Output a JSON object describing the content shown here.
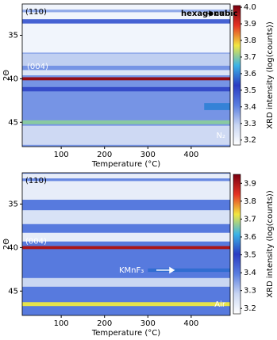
{
  "chart_data": [
    {
      "type": "heatmap",
      "xlabel": "Temperature (°C)",
      "ylabel": "2Θ",
      "colorbar_label": "XRD intensity (log(counts))",
      "xlim": [
        10,
        490
      ],
      "xticks": [
        100,
        200,
        300,
        400
      ],
      "ylim": [
        31.4,
        47.8
      ],
      "yticks": [
        35,
        40,
        45
      ],
      "clim": [
        3.17,
        4.01
      ],
      "cticks": [
        {
          "value": 3.2,
          "label": "3.2"
        },
        {
          "value": 3.3,
          "label": "3.3"
        },
        {
          "value": 3.4,
          "label": "3.4"
        },
        {
          "value": 3.5,
          "label": "3.5"
        },
        {
          "value": 3.6,
          "label": "3.6"
        },
        {
          "value": 3.7,
          "label": "3.7"
        },
        {
          "value": 3.8,
          "label": "3.8"
        },
        {
          "value": 3.9,
          "label": "3.9"
        },
        {
          "value": 4.0,
          "label": "4.0"
        }
      ],
      "colormap": [
        "#ffffff",
        "#c9d6f2",
        "#5a7ee0",
        "#2a3cc2",
        "#3cb4e6",
        "#f2e640",
        "#e43222",
        "#7a0010"
      ],
      "background": 3.38,
      "bands": [
        {
          "two_theta": 34.2,
          "intensity": 3.2,
          "width": 5.6
        },
        {
          "two_theta": 32.2,
          "intensity": 3.35,
          "width": 0.3
        },
        {
          "two_theta": 33.4,
          "intensity": 3.46,
          "width": 0.5
        },
        {
          "two_theta": 37.8,
          "intensity": 3.3,
          "width": 1.4
        },
        {
          "two_theta": 39.3,
          "intensity": 3.25,
          "width": 0.6
        },
        {
          "two_theta": 40.0,
          "intensity": 3.98,
          "width": 0.35
        },
        {
          "two_theta": 41.2,
          "intensity": 3.5,
          "width": 0.5
        },
        {
          "two_theta": 43.2,
          "intensity": 3.6,
          "width": 0.8,
          "temperature": [
            430,
            490
          ]
        },
        {
          "two_theta": 45.0,
          "intensity": 3.7,
          "width": 0.45
        },
        {
          "two_theta": 46.5,
          "intensity": 3.28,
          "width": 2.2
        }
      ],
      "annotations": [
        "(110)",
        "(004)",
        "hexagonal",
        "cubic",
        "N₂"
      ]
    },
    {
      "type": "heatmap",
      "xlabel": "Temperature (°C)",
      "ylabel": "2Θ",
      "colorbar_label": "XRD intensity (log(counts))",
      "xlim": [
        10,
        490
      ],
      "xticks": [
        100,
        200,
        300,
        400
      ],
      "ylim": [
        31.4,
        47.8
      ],
      "yticks": [
        35,
        40,
        45
      ],
      "clim": [
        3.17,
        3.95
      ],
      "cticks": [
        {
          "value": 3.2,
          "label": "3.2"
        },
        {
          "value": 3.3,
          "label": "3.3"
        },
        {
          "value": 3.4,
          "label": "3.4"
        },
        {
          "value": 3.5,
          "label": "3.5"
        },
        {
          "value": 3.6,
          "label": "3.6"
        },
        {
          "value": 3.7,
          "label": "3.7"
        },
        {
          "value": 3.8,
          "label": "3.8"
        },
        {
          "value": 3.9,
          "label": "3.9"
        }
      ],
      "colormap": [
        "#ffffff",
        "#c9d6f2",
        "#5a7ee0",
        "#2a3cc2",
        "#3cb4e6",
        "#f2e640",
        "#e43222",
        "#7a0010"
      ],
      "background": 3.4,
      "bands": [
        {
          "two_theta": 33.0,
          "intensity": 3.22,
          "width": 3.0
        },
        {
          "two_theta": 32.2,
          "intensity": 3.38,
          "width": 0.3
        },
        {
          "two_theta": 36.5,
          "intensity": 3.25,
          "width": 1.6
        },
        {
          "two_theta": 38.8,
          "intensity": 3.22,
          "width": 1.0
        },
        {
          "two_theta": 40.0,
          "intensity": 3.9,
          "width": 0.35
        },
        {
          "two_theta": 42.6,
          "intensity": 3.55,
          "width": 0.4,
          "temperature": [
            300,
            490
          ]
        },
        {
          "two_theta": 44.0,
          "intensity": 3.28,
          "width": 1.0
        },
        {
          "two_theta": 46.5,
          "intensity": 3.72,
          "width": 0.45
        }
      ],
      "annotations": [
        "(110)",
        "(004)",
        "KMnF₃",
        "Air"
      ]
    }
  ]
}
